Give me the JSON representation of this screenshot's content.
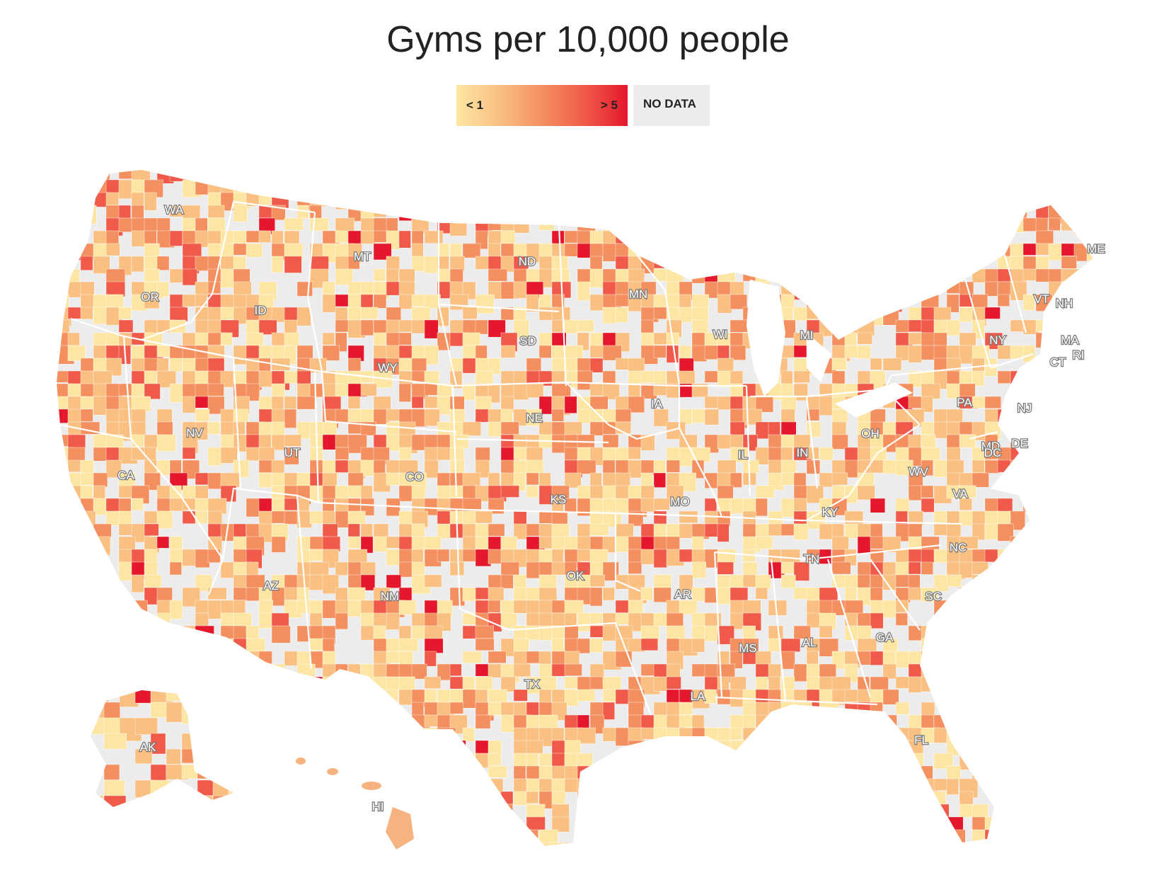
{
  "title": "Gyms per 10,000 people",
  "legend": {
    "low_label": "< 1",
    "high_label": "> 5",
    "nodata_label": "NO DATA"
  },
  "colors": {
    "scale": [
      "#fde6a3",
      "#f9c082",
      "#f4905f",
      "#ef5a4a",
      "#e4172c"
    ],
    "nodata": "#ececec",
    "border": "#ffffff"
  },
  "state_labels": [
    "WA",
    "OR",
    "CA",
    "ID",
    "NV",
    "MT",
    "WY",
    "UT",
    "AZ",
    "CO",
    "NM",
    "ND",
    "SD",
    "NE",
    "KS",
    "OK",
    "TX",
    "MN",
    "IA",
    "MO",
    "AR",
    "LA",
    "WI",
    "IL",
    "MI",
    "IN",
    "OH",
    "KY",
    "TN",
    "MS",
    "AL",
    "GA",
    "FL",
    "SC",
    "NC",
    "VA",
    "WV",
    "PA",
    "NY",
    "VT",
    "NH",
    "ME",
    "MA",
    "CT",
    "RI",
    "NJ",
    "DE",
    "MD",
    "DC",
    "AK",
    "HI"
  ]
}
